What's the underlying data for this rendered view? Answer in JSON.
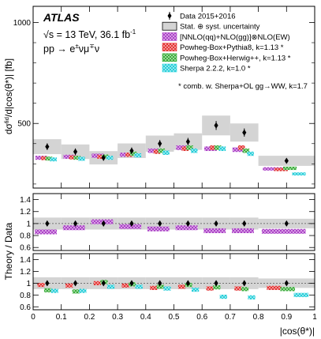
{
  "labels": {
    "experiment": "ATLAS",
    "energy": "√s = 13 TeV, 36.1 fb",
    "energy_sup": "-1",
    "process": "pp → e",
    "process_sup": "±",
    "process_tail": "νμ",
    "process_sup2": "∓",
    "process_end": "ν"
  },
  "legend": {
    "entries": [
      {
        "id": "data",
        "label": "Data 2015+2016",
        "color": "#000000",
        "style": "marker"
      },
      {
        "id": "unc",
        "label": "Stat. ⊕ syst. uncertainty",
        "color": "#d4d4d4",
        "style": "box"
      },
      {
        "id": "nnlo",
        "label": "[NNLO(qq)+NLO(gg)]⊗NLO(EW)",
        "color": "#b040c8",
        "style": "hatch"
      },
      {
        "id": "pythia",
        "label": "Powheg-Box+Pythia8, k=1.13 *",
        "color": "#e83030",
        "style": "hatch"
      },
      {
        "id": "herwig",
        "label": "Powheg-Box+Herwig++, k=1.13 *",
        "color": "#38b038",
        "style": "hatch"
      },
      {
        "id": "sherpa",
        "label": "Sherpa 2.2.2, k=1.0 *",
        "color": "#30d8e0",
        "style": "hatch"
      }
    ],
    "footnote": "* comb. w. Sherpa+OL gg→WW, k=1.7"
  },
  "chart_data": {
    "type": "histogram",
    "bin_edges": [
      0,
      0.1,
      0.2,
      0.3,
      0.4,
      0.5,
      0.6,
      0.7,
      0.8,
      1.0
    ],
    "top_panel": {
      "ylabel": "dσ^fid/d|cos(θ*)| [fb]",
      "ylim": [
        180,
        1080
      ],
      "yticks": [
        500,
        1000
      ],
      "data": {
        "values": [
          385,
          360,
          330,
          365,
          400,
          410,
          490,
          455,
          315
        ],
        "unc": [
          37,
          36,
          33,
          36,
          40,
          41,
          49,
          45,
          25
        ]
      },
      "predictions": [
        {
          "id": "nnlo",
          "values": [
            330,
            335,
            340,
            345,
            365,
            380,
            375,
            370,
            275
          ]
        },
        {
          "id": "pythia",
          "values": [
            328,
            332,
            335,
            345,
            360,
            375,
            380,
            380,
            272
          ]
        },
        {
          "id": "herwig",
          "values": [
            326,
            330,
            336,
            350,
            365,
            380,
            380,
            365,
            278
          ]
        },
        {
          "id": "sherpa",
          "values": [
            322,
            325,
            330,
            342,
            355,
            365,
            375,
            350,
            250
          ]
        }
      ]
    },
    "ratio_panel_1": {
      "ylabel": "Theory / Data",
      "ylim": [
        0.55,
        1.5
      ],
      "yticks": [
        0.6,
        0.8,
        1,
        1.2,
        1.4
      ],
      "ytick_labels": [
        "0.6",
        "0.8",
        "1",
        "1.2",
        "1.4"
      ],
      "data_unc": [
        0.1,
        0.1,
        0.1,
        0.1,
        0.1,
        0.1,
        0.1,
        0.1,
        0.08
      ],
      "prediction": {
        "id": "nnlo",
        "values": [
          0.86,
          0.93,
          1.03,
          0.95,
          0.91,
          0.93,
          0.88,
          0.88,
          0.87
        ],
        "half_width": 0.04
      }
    },
    "ratio_panel_2": {
      "ylim": [
        0.55,
        1.5
      ],
      "yticks": [
        0.6,
        0.8,
        1,
        1.2,
        1.4
      ],
      "ytick_labels": [
        "0.6",
        "0.8",
        "1",
        "1.2",
        "1.4"
      ],
      "data_unc": [
        0.1,
        0.1,
        0.1,
        0.1,
        0.1,
        0.1,
        0.1,
        0.1,
        0.08
      ],
      "predictions": [
        {
          "id": "pythia",
          "values": [
            0.97,
            0.96,
            1.0,
            0.96,
            0.92,
            0.94,
            0.91,
            0.91,
            0.92
          ]
        },
        {
          "id": "herwig",
          "values": [
            0.88,
            0.86,
            1.02,
            0.98,
            0.94,
            0.97,
            0.93,
            0.9,
            0.9
          ]
        },
        {
          "id": "sherpa",
          "values": [
            0.87,
            0.87,
            0.94,
            0.94,
            0.91,
            0.89,
            0.77,
            0.76,
            0.8
          ]
        }
      ],
      "half_width": 0.035
    },
    "xlabel": "|cos(θ*)|",
    "xlim": [
      0,
      1
    ],
    "xticks": [
      0,
      0.1,
      0.2,
      0.3,
      0.4,
      0.5,
      0.6,
      0.7,
      0.8,
      0.9,
      1
    ],
    "xtick_labels": [
      "0",
      "0.1",
      "0.2",
      "0.3",
      "0.4",
      "0.5",
      "0.6",
      "0.7",
      "0.8",
      "0.9",
      "1"
    ]
  }
}
